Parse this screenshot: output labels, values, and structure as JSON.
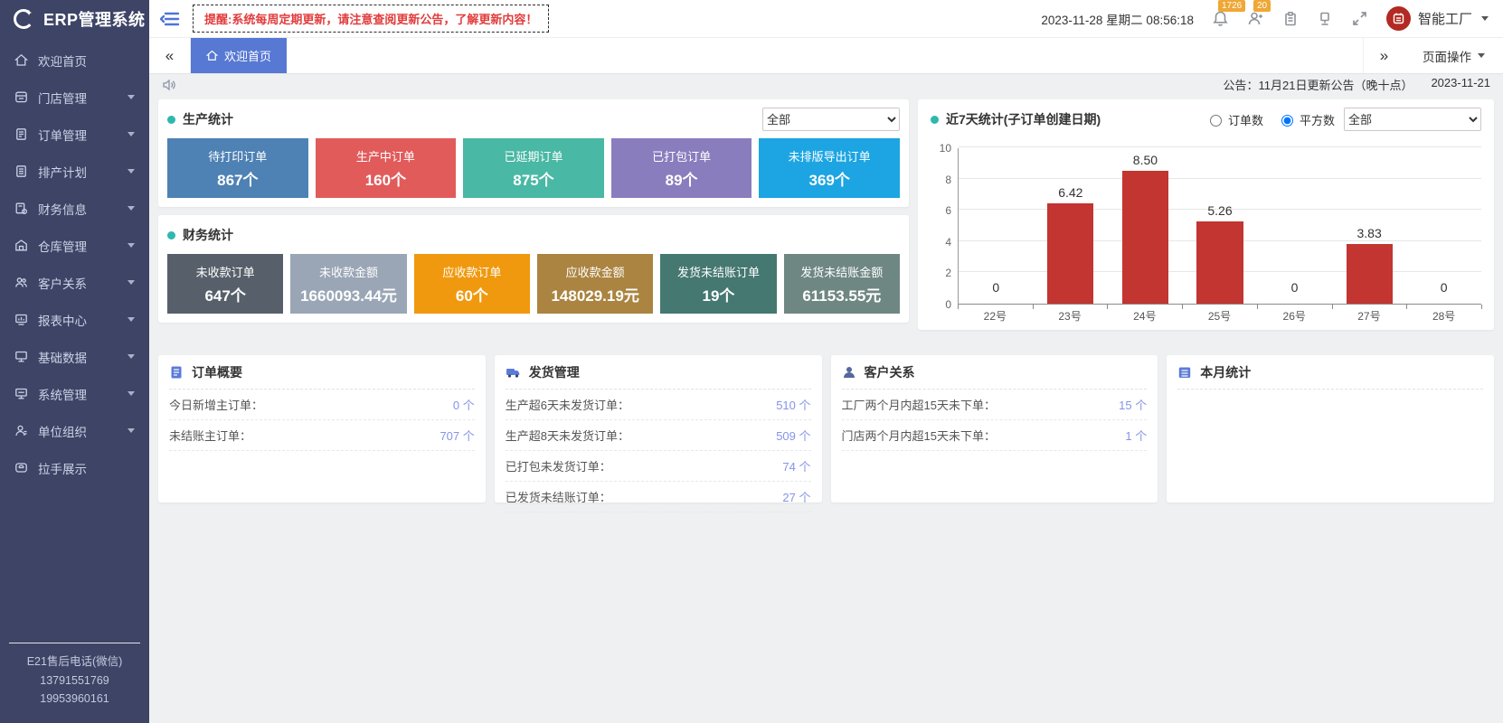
{
  "header": {
    "logo_text": "ERP管理系统",
    "reminder": "提醒:系统每周定期更新，请注意查阅更新公告，了解更新内容！",
    "datetime": "2023-11-28 星期二 08:56:18",
    "bell_badge": "1726",
    "user_badge": "20",
    "user_name": "智能工厂",
    "badge_color": "#efa735",
    "avatar_color": "#b22a23"
  },
  "tabbar": {
    "scroll_left": "«",
    "scroll_right": "»",
    "active_tab": "欢迎首页",
    "page_actions": "页面操作",
    "active_tab_color": "#5778d3"
  },
  "announcement": {
    "text": "公告：11月21日更新公告（晚十点）",
    "date": "2023-11-21"
  },
  "sidebar": {
    "items": [
      {
        "label": "欢迎首页"
      },
      {
        "label": "门店管理"
      },
      {
        "label": "订单管理"
      },
      {
        "label": "排产计划"
      },
      {
        "label": "财务信息"
      },
      {
        "label": "仓库管理"
      },
      {
        "label": "客户关系"
      },
      {
        "label": "报表中心"
      },
      {
        "label": "基础数据"
      },
      {
        "label": "系统管理"
      },
      {
        "label": "单位组织"
      },
      {
        "label": "拉手展示"
      }
    ],
    "footer_lines": [
      "E21售后电话(微信)",
      "13791551769",
      "19953960161"
    ]
  },
  "production": {
    "title": "生产统计",
    "filter_value": "全部",
    "cards": [
      {
        "label": "待打印订单",
        "value": "867个",
        "color": "#4e81b4"
      },
      {
        "label": "生产中订单",
        "value": "160个",
        "color": "#e25b5b"
      },
      {
        "label": "已延期订单",
        "value": "875个",
        "color": "#49b8a4"
      },
      {
        "label": "已打包订单",
        "value": "89个",
        "color": "#8a7dbe"
      },
      {
        "label": "未排版导出订单",
        "value": "369个",
        "color": "#1ca5e2"
      }
    ]
  },
  "finance": {
    "title": "财务统计",
    "cards": [
      {
        "label": "未收款订单",
        "value": "647个",
        "color": "#57606a"
      },
      {
        "label": "未收款金额",
        "value": "1660093.44元",
        "color": "#9aa6b5"
      },
      {
        "label": "应收款订单",
        "value": "60个",
        "color": "#f0990e"
      },
      {
        "label": "应收款金额",
        "value": "148029.19元",
        "color": "#aa8440"
      },
      {
        "label": "发货未结账订单",
        "value": "19个",
        "color": "#447871"
      },
      {
        "label": "发货未结账金额",
        "value": "61153.55元",
        "color": "#6f8783"
      }
    ]
  },
  "chart": {
    "title": "近7天统计(子订单创建日期)",
    "radios": [
      {
        "label": "订单数",
        "checked": false
      },
      {
        "label": "平方数",
        "checked": true
      }
    ],
    "filter_value": "全部"
  },
  "chart_data": {
    "type": "bar",
    "title": "近7天统计(子订单创建日期)",
    "categories": [
      "22号",
      "23号",
      "24号",
      "25号",
      "26号",
      "27号",
      "28号"
    ],
    "values": [
      0,
      6.42,
      8.5,
      5.26,
      0,
      3.83,
      0
    ],
    "value_labels": [
      "0",
      "6.42",
      "8.50",
      "5.26",
      "0",
      "3.83",
      "0"
    ],
    "bar_color": "#c23531",
    "xlabel": "",
    "ylabel": "",
    "ylim": [
      0,
      10
    ],
    "yticks": [
      0,
      2,
      4,
      6,
      8,
      10
    ],
    "grid": true,
    "legend": "none"
  },
  "panels": [
    {
      "title": "订单概要",
      "rows": [
        {
          "label": "今日新增主订单：",
          "value": "0 个"
        },
        {
          "label": "未结账主订单：",
          "value": "707 个"
        }
      ]
    },
    {
      "title": "发货管理",
      "rows": [
        {
          "label": "生产超6天未发货订单：",
          "value": "510 个"
        },
        {
          "label": "生产超8天未发货订单：",
          "value": "509 个"
        },
        {
          "label": "已打包未发货订单：",
          "value": "74 个"
        },
        {
          "label": "已发货未结账订单：",
          "value": "27 个"
        }
      ]
    },
    {
      "title": "客户关系",
      "rows": [
        {
          "label": "工厂两个月内超15天未下单：",
          "value": "15 个"
        },
        {
          "label": "门店两个月内超15天未下单：",
          "value": "1 个"
        }
      ]
    },
    {
      "title": "本月统计",
      "rows": []
    }
  ]
}
